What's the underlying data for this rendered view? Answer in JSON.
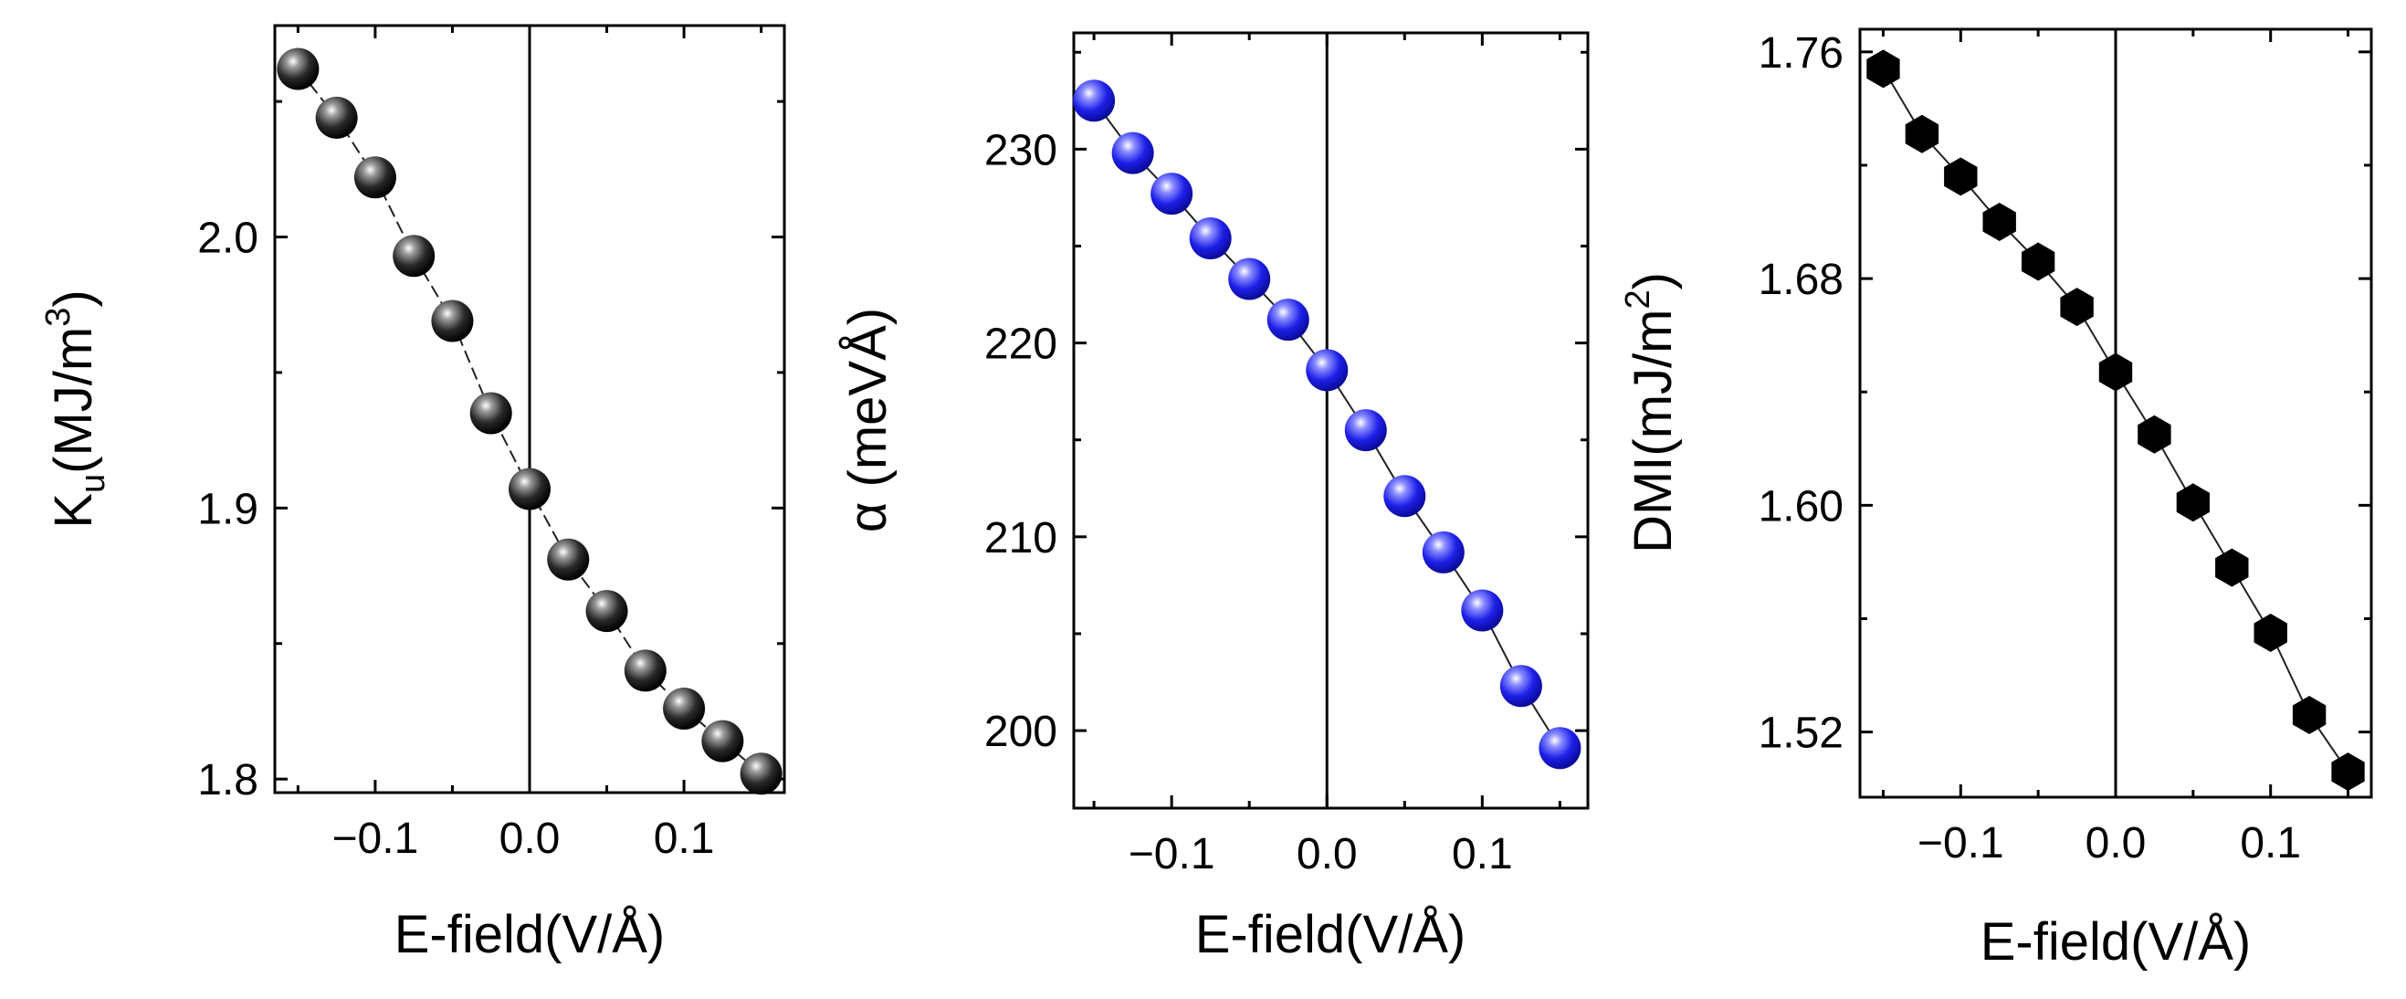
{
  "chart_data": [
    {
      "type": "scatter",
      "title": "",
      "xlabel": "E-field(V/Å)",
      "ylabel": {
        "main": "K",
        "sub": "u",
        "rest": "(MJ/m",
        "sup": "3",
        "close": ")"
      },
      "xlim": [
        -0.165,
        0.165
      ],
      "ylim": [
        1.795,
        2.078
      ],
      "xticks": [
        -0.1,
        0.0,
        0.1
      ],
      "xtick_labels": [
        "−0.1",
        "0.0",
        "0.1"
      ],
      "yticks": [
        1.8,
        1.9,
        2.0
      ],
      "ytick_labels": [
        "1.8",
        "1.9",
        "2.0"
      ],
      "marker": "sphere",
      "color": "#111111",
      "line": "dashed",
      "x": [
        -0.15,
        -0.125,
        -0.1,
        -0.075,
        -0.05,
        -0.025,
        0.0,
        0.025,
        0.05,
        0.075,
        0.1,
        0.125,
        0.15
      ],
      "y": [
        2.062,
        2.044,
        2.022,
        1.993,
        1.969,
        1.935,
        1.907,
        1.881,
        1.862,
        1.84,
        1.826,
        1.814,
        1.802
      ]
    },
    {
      "type": "scatter",
      "title": "",
      "xlabel": "E-field(V/Å)",
      "ylabel": {
        "main": "α (meVÅ)"
      },
      "xlim": [
        -0.163,
        0.168
      ],
      "ylim": [
        196.0,
        236.0
      ],
      "xticks": [
        -0.1,
        0.0,
        0.1
      ],
      "xtick_labels": [
        "−0.1",
        "0.0",
        "0.1"
      ],
      "yticks": [
        200,
        210,
        220,
        230
      ],
      "ytick_labels": [
        "200",
        "210",
        "220",
        "230"
      ],
      "marker": "sphere",
      "color": "#1f1fe6",
      "line": "solid",
      "x": [
        -0.15,
        -0.125,
        -0.1,
        -0.075,
        -0.05,
        -0.025,
        0.0,
        0.025,
        0.05,
        0.075,
        0.1,
        0.125,
        0.15
      ],
      "y": [
        232.5,
        229.8,
        227.7,
        225.4,
        223.3,
        221.2,
        218.6,
        215.5,
        212.1,
        209.2,
        206.2,
        202.3,
        199.1
      ]
    },
    {
      "type": "scatter",
      "title": "",
      "xlabel": "E-field(V/Å)",
      "ylabel": {
        "main": "DMI(mJ/m",
        "sup": "2",
        "close": ")"
      },
      "xlim": [
        -0.165,
        0.165
      ],
      "ylim": [
        1.497,
        1.768
      ],
      "xticks": [
        -0.1,
        0.0,
        0.1
      ],
      "xtick_labels": [
        "−0.1",
        "0.0",
        "0.1"
      ],
      "yticks": [
        1.52,
        1.6,
        1.68,
        1.76
      ],
      "ytick_labels": [
        "1.52",
        "1.60",
        "1.68",
        "1.76"
      ],
      "marker": "hexagon",
      "color": "#000000",
      "line": "solid",
      "x": [
        -0.15,
        -0.125,
        -0.1,
        -0.075,
        -0.05,
        -0.025,
        0.0,
        0.025,
        0.05,
        0.075,
        0.1,
        0.125,
        0.15
      ],
      "y": [
        1.754,
        1.731,
        1.716,
        1.7,
        1.686,
        1.67,
        1.647,
        1.625,
        1.601,
        1.578,
        1.555,
        1.526,
        1.506
      ]
    }
  ]
}
